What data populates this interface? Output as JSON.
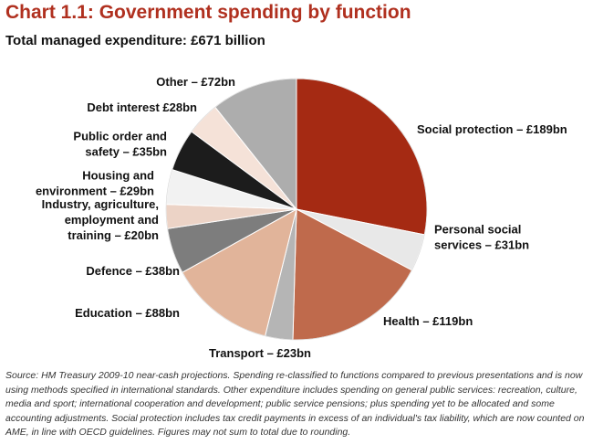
{
  "title": "Chart 1.1: Government spending by function",
  "subtitle": "Total managed expenditure: £671 billion",
  "source": "Source: HM Treasury 2009-10 near-cash projections. Spending re-classified to functions compared to previous presentations and is now using methods specified in international standards. Other expenditure includes spending on general public services: recreation, culture, media and sport; international cooperation and development; public service pensions; plus spending yet to be allocated and some accounting adjustments. Social protection includes tax credit payments in excess of an individual's tax liability, which are now counted on AME, in line with OECD guidelines. Figures may not sum to total due to rounding.",
  "chart_data": {
    "type": "pie",
    "unit": "£bn",
    "total": 671,
    "slices": [
      {
        "key": "social_protection",
        "label": [
          "Social protection – £189bn"
        ],
        "value": 189,
        "color": "#a52a13"
      },
      {
        "key": "personal_social_services",
        "label": [
          "Personal social",
          "services – £31bn"
        ],
        "value": 31,
        "color": "#e8e8e8"
      },
      {
        "key": "health",
        "label": [
          "Health – £119bn"
        ],
        "value": 119,
        "color": "#bf6a4c"
      },
      {
        "key": "transport",
        "label": [
          "Transport – £23bn"
        ],
        "value": 23,
        "color": "#b5b5b5"
      },
      {
        "key": "education",
        "label": [
          "Education – £88bn"
        ],
        "value": 88,
        "color": "#e1b49a"
      },
      {
        "key": "defence",
        "label": [
          "Defence – £38bn"
        ],
        "value": 38,
        "color": "#7d7d7d"
      },
      {
        "key": "industry",
        "label": [
          "Industry, agriculture,",
          "employment and",
          "training – £20bn"
        ],
        "value": 20,
        "color": "#ecd3c6"
      },
      {
        "key": "housing",
        "label": [
          "Housing and",
          "environment – £29bn"
        ],
        "value": 29,
        "color": "#f2f2f2"
      },
      {
        "key": "public_order",
        "label": [
          "Public order and",
          "safety – £35bn"
        ],
        "value": 35,
        "color": "#1c1c1c"
      },
      {
        "key": "debt_interest",
        "label": [
          "Debt interest £28bn"
        ],
        "value": 28,
        "color": "#f5e2d8"
      },
      {
        "key": "other",
        "label": [
          "Other – £72bn"
        ],
        "value": 72,
        "color": "#adadad"
      }
    ]
  }
}
